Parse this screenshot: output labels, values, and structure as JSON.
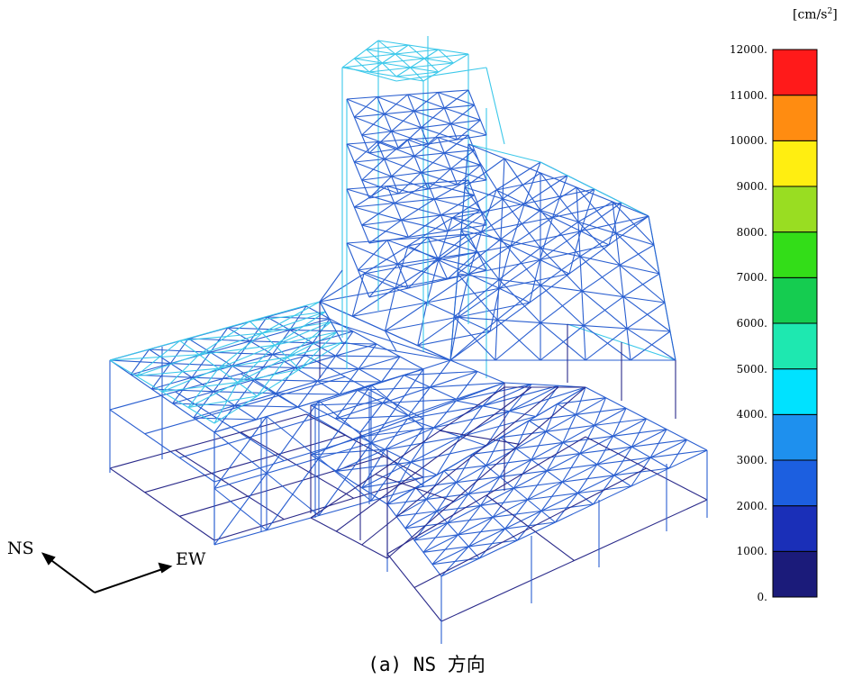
{
  "colorbar": {
    "unit_prefix": "[cm/s",
    "unit_exp": "2",
    "unit_suffix": "]",
    "ticks": [
      "12000.",
      "11000.",
      "10000.",
      "9000.",
      "8000.",
      "7000.",
      "6000.",
      "5000.",
      "4000.",
      "3000.",
      "2000.",
      "1000.",
      "0."
    ],
    "colors": [
      "#1b1b7a",
      "#1a2fb8",
      "#1c5fe0",
      "#1e90ee",
      "#00e2ff",
      "#1ee8b0",
      "#15cc50",
      "#33dd18",
      "#99dd22",
      "#ffee11",
      "#ff8c11",
      "#ff1a1a"
    ]
  },
  "orientation": {
    "ns_label": "NS",
    "ew_label": "EW"
  },
  "caption": "(a) NS 方向",
  "palette": {
    "low": "#2a2a8a",
    "mid": "#2a5fd0",
    "high": "#3cc8ea"
  }
}
